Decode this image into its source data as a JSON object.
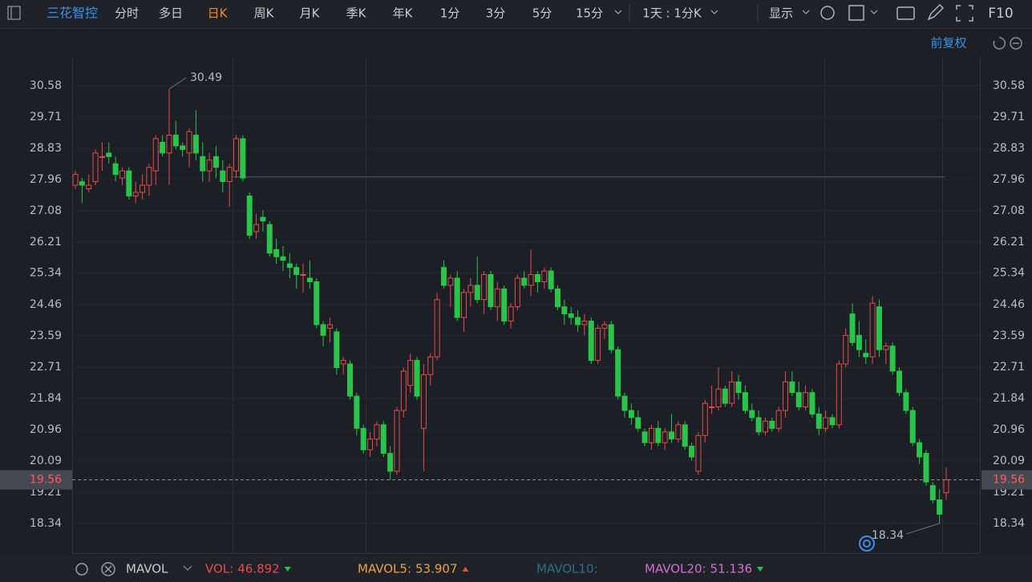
{
  "toolbar": {
    "stock": "三花智控",
    "tabs": [
      "分时",
      "多日",
      "日K",
      "周K",
      "月K",
      "季K",
      "年K",
      "1分",
      "3分",
      "5分",
      "15分"
    ],
    "active_tab": "日K",
    "period": "1天 : 1分K",
    "display": "显示",
    "f10": "F10"
  },
  "adjust": "前复权",
  "chart_data": {
    "type": "candlestick",
    "up_color": "#e84b4b",
    "down_color": "#2ac44a",
    "ylim": [
      17.51,
      31.41
    ],
    "yticks": [
      30.58,
      29.71,
      28.83,
      27.96,
      27.08,
      26.21,
      25.34,
      24.46,
      23.59,
      22.71,
      21.84,
      20.96,
      20.09,
      19.21,
      18.34
    ],
    "grid": true,
    "last_price": 19.56,
    "max_label": 30.49,
    "min_label": 18.34,
    "reference_line": 28.03,
    "candles": [
      [
        27.8,
        28.2,
        27.7,
        28.1
      ],
      [
        27.9,
        28.0,
        27.3,
        27.8
      ],
      [
        27.7,
        28.1,
        27.6,
        27.8
      ],
      [
        27.9,
        28.8,
        27.8,
        28.7
      ],
      [
        28.6,
        29.0,
        28.2,
        28.6
      ],
      [
        28.7,
        29.0,
        28.4,
        28.6
      ],
      [
        28.4,
        28.6,
        27.9,
        28.1
      ],
      [
        28.0,
        28.3,
        27.8,
        28.2
      ],
      [
        28.2,
        28.3,
        27.4,
        27.5
      ],
      [
        27.5,
        27.9,
        27.3,
        27.6
      ],
      [
        27.6,
        28.1,
        27.4,
        27.8
      ],
      [
        27.8,
        28.4,
        27.5,
        28.3
      ],
      [
        28.2,
        29.2,
        27.8,
        29.1
      ],
      [
        29.0,
        29.2,
        28.6,
        28.7
      ],
      [
        28.7,
        30.49,
        27.8,
        29.2
      ],
      [
        29.2,
        29.6,
        28.8,
        28.9
      ],
      [
        28.9,
        29.0,
        28.6,
        28.8
      ],
      [
        28.7,
        29.4,
        28.3,
        29.3
      ],
      [
        29.2,
        29.9,
        28.5,
        28.7
      ],
      [
        28.6,
        29.0,
        27.9,
        28.2
      ],
      [
        28.2,
        28.7,
        27.9,
        28.5
      ],
      [
        28.6,
        28.9,
        28.0,
        28.3
      ],
      [
        28.2,
        28.5,
        27.6,
        27.9
      ],
      [
        27.9,
        28.4,
        27.2,
        28.3
      ],
      [
        28.2,
        29.2,
        28.0,
        29.1
      ],
      [
        29.1,
        29.2,
        27.9,
        28.0
      ],
      [
        27.5,
        27.6,
        26.3,
        26.4
      ],
      [
        26.5,
        27.0,
        26.3,
        26.7
      ],
      [
        26.9,
        27.1,
        26.5,
        26.8
      ],
      [
        26.7,
        26.8,
        25.8,
        25.9
      ],
      [
        26.0,
        26.3,
        25.6,
        25.8
      ],
      [
        25.8,
        26.1,
        25.4,
        25.7
      ],
      [
        25.6,
        25.9,
        25.2,
        25.5
      ],
      [
        25.5,
        25.6,
        24.9,
        25.3
      ],
      [
        25.3,
        25.6,
        24.8,
        25.3
      ],
      [
        25.2,
        25.7,
        24.9,
        25.1
      ],
      [
        25.1,
        25.2,
        23.8,
        23.9
      ],
      [
        23.9,
        24.0,
        23.3,
        23.6
      ],
      [
        23.8,
        24.1,
        23.4,
        23.9
      ],
      [
        23.7,
        23.8,
        22.5,
        22.7
      ],
      [
        22.8,
        23.0,
        22.5,
        22.9
      ],
      [
        22.8,
        22.9,
        21.8,
        21.9
      ],
      [
        21.9,
        22.0,
        20.8,
        21.0
      ],
      [
        21.0,
        21.1,
        20.3,
        20.4
      ],
      [
        20.4,
        20.9,
        20.2,
        20.7
      ],
      [
        20.7,
        21.2,
        20.5,
        21.1
      ],
      [
        21.1,
        21.2,
        20.2,
        20.3
      ],
      [
        20.3,
        20.5,
        19.56,
        19.8
      ],
      [
        19.8,
        21.6,
        19.7,
        21.5
      ],
      [
        21.5,
        22.7,
        21.3,
        22.6
      ],
      [
        22.2,
        23.1,
        22.0,
        22.9
      ],
      [
        22.9,
        23.0,
        21.8,
        21.9
      ],
      [
        21.0,
        22.8,
        19.8,
        22.5
      ],
      [
        22.5,
        23.1,
        22.2,
        23.0
      ],
      [
        23.0,
        24.8,
        22.9,
        24.6
      ],
      [
        25.5,
        25.7,
        24.9,
        25.0
      ],
      [
        25.0,
        25.3,
        24.4,
        25.2
      ],
      [
        25.2,
        25.4,
        24.0,
        24.1
      ],
      [
        24.1,
        24.9,
        23.7,
        24.8
      ],
      [
        24.8,
        25.2,
        24.4,
        25.0
      ],
      [
        25.0,
        25.8,
        24.5,
        24.6
      ],
      [
        24.6,
        25.4,
        24.2,
        25.3
      ],
      [
        25.3,
        25.4,
        24.3,
        24.4
      ],
      [
        24.4,
        25.1,
        24.0,
        24.9
      ],
      [
        24.9,
        25.0,
        23.9,
        24.0
      ],
      [
        24.0,
        24.5,
        23.8,
        24.4
      ],
      [
        24.4,
        25.3,
        24.3,
        25.2
      ],
      [
        25.2,
        25.4,
        24.9,
        25.0
      ],
      [
        25.0,
        26.0,
        24.7,
        25.3
      ],
      [
        25.3,
        25.4,
        24.8,
        25.1
      ],
      [
        25.1,
        25.5,
        24.9,
        25.4
      ],
      [
        25.4,
        25.5,
        24.8,
        24.9
      ],
      [
        24.9,
        25.0,
        24.3,
        24.4
      ],
      [
        24.4,
        24.6,
        23.9,
        24.2
      ],
      [
        24.2,
        24.4,
        23.9,
        24.1
      ],
      [
        24.1,
        24.3,
        23.7,
        23.9
      ],
      [
        23.9,
        24.2,
        23.6,
        24.0
      ],
      [
        24.0,
        24.1,
        22.8,
        22.9
      ],
      [
        22.9,
        23.9,
        22.8,
        23.8
      ],
      [
        23.8,
        24.0,
        23.5,
        23.9
      ],
      [
        23.9,
        24.0,
        23.1,
        23.2
      ],
      [
        23.2,
        23.3,
        21.8,
        21.9
      ],
      [
        21.9,
        22.0,
        21.3,
        21.5
      ],
      [
        21.5,
        21.7,
        21.1,
        21.3
      ],
      [
        21.3,
        21.5,
        20.9,
        21.0
      ],
      [
        20.9,
        21.0,
        20.5,
        20.6
      ],
      [
        20.6,
        21.1,
        20.4,
        21.0
      ],
      [
        21.0,
        21.2,
        20.5,
        20.6
      ],
      [
        20.6,
        21.0,
        20.4,
        20.9
      ],
      [
        20.9,
        21.4,
        20.6,
        20.7
      ],
      [
        20.7,
        21.2,
        20.6,
        21.1
      ],
      [
        21.1,
        21.2,
        20.4,
        20.5
      ],
      [
        20.5,
        20.6,
        20.1,
        20.2
      ],
      [
        19.8,
        20.9,
        19.7,
        20.8
      ],
      [
        20.8,
        21.8,
        20.6,
        21.7
      ],
      [
        21.6,
        22.2,
        21.4,
        21.6
      ],
      [
        21.6,
        22.7,
        21.5,
        22.1
      ],
      [
        22.1,
        22.2,
        21.6,
        21.7
      ],
      [
        21.7,
        22.6,
        21.6,
        22.3
      ],
      [
        22.3,
        22.5,
        21.8,
        22.0
      ],
      [
        22.0,
        22.2,
        21.4,
        21.5
      ],
      [
        21.5,
        21.7,
        21.2,
        21.3
      ],
      [
        21.3,
        21.5,
        20.8,
        20.9
      ],
      [
        20.9,
        21.3,
        20.8,
        21.2
      ],
      [
        21.2,
        21.3,
        20.9,
        21.0
      ],
      [
        21.0,
        21.6,
        20.9,
        21.5
      ],
      [
        21.5,
        22.6,
        21.3,
        22.3
      ],
      [
        22.3,
        22.6,
        21.9,
        22.0
      ],
      [
        22.0,
        22.3,
        21.5,
        21.6
      ],
      [
        21.6,
        22.2,
        21.5,
        22.0
      ],
      [
        22.0,
        22.1,
        21.3,
        21.4
      ],
      [
        21.4,
        21.6,
        20.8,
        21.0
      ],
      [
        21.0,
        21.5,
        20.9,
        21.3
      ],
      [
        21.3,
        21.4,
        21.0,
        21.1
      ],
      [
        21.1,
        22.9,
        21.0,
        22.8
      ],
      [
        22.8,
        23.8,
        22.7,
        23.6
      ],
      [
        24.2,
        24.5,
        23.3,
        23.4
      ],
      [
        23.6,
        24.0,
        23.0,
        23.2
      ],
      [
        23.1,
        23.5,
        22.8,
        23.0
      ],
      [
        23.0,
        24.7,
        22.8,
        24.5
      ],
      [
        24.4,
        24.6,
        23.0,
        23.2
      ],
      [
        23.2,
        23.4,
        22.8,
        23.3
      ],
      [
        23.3,
        23.4,
        22.5,
        22.6
      ],
      [
        22.6,
        22.7,
        21.9,
        22.0
      ],
      [
        22.0,
        22.1,
        21.4,
        21.5
      ],
      [
        21.5,
        21.6,
        20.5,
        20.6
      ],
      [
        20.6,
        20.7,
        20.0,
        20.2
      ],
      [
        20.3,
        20.4,
        19.4,
        19.5
      ],
      [
        19.4,
        19.5,
        18.9,
        19.0
      ],
      [
        19.0,
        19.3,
        18.34,
        18.6
      ],
      [
        19.2,
        19.9,
        19.0,
        19.56
      ]
    ]
  },
  "indicator": {
    "name": "MAVOL",
    "items": [
      {
        "label": "VOL:",
        "value": 46.892,
        "color": "#e84b4b",
        "trend": "down"
      },
      {
        "label": "MAVOL5:",
        "value": 53.907,
        "color": "#f0a040",
        "trend": "up"
      },
      {
        "label": "MAVOL10:",
        "color": "#2f6f8a"
      },
      {
        "label": "MAVOL20:",
        "value": 51.136,
        "color": "#d070d0",
        "trend": "down"
      }
    ]
  }
}
